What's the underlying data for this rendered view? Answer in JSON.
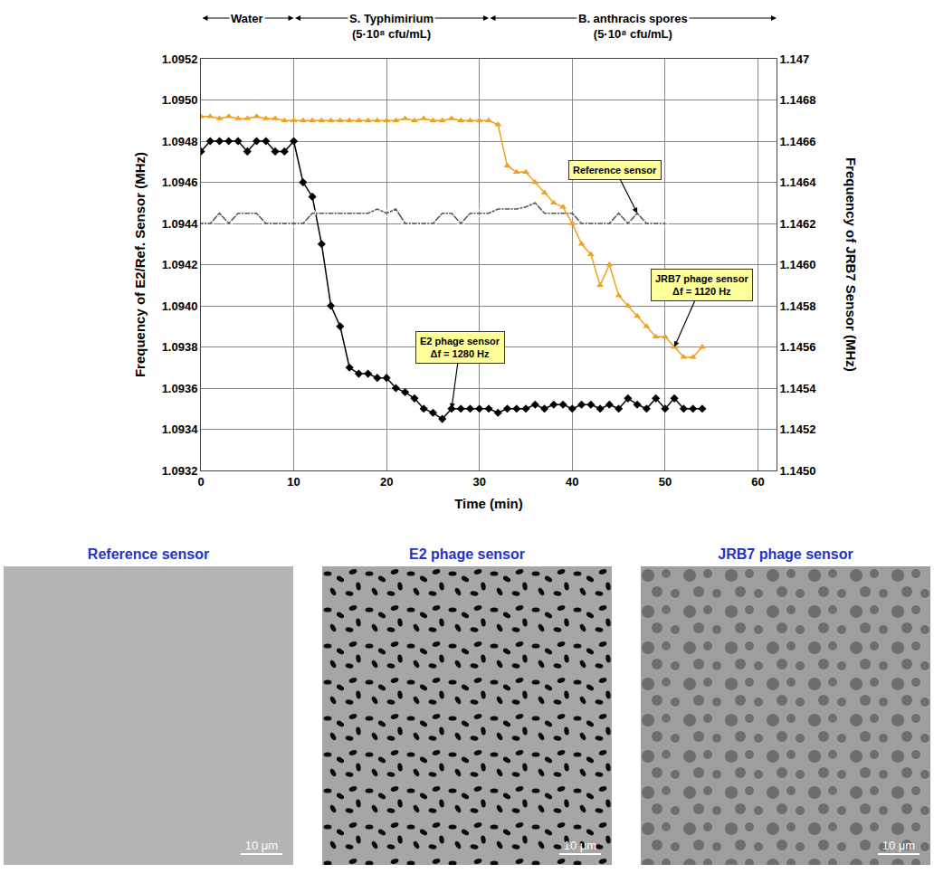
{
  "chart_data": {
    "type": "line",
    "xlabel": "Time (min)",
    "ylabel": "Frequency of E2/Ref. Sensor (MHz)",
    "y2label": "Frequency of JRB7 Sensor (MHz)",
    "xlim": [
      0,
      62
    ],
    "xticks": [
      0,
      10,
      20,
      30,
      40,
      50,
      60
    ],
    "ylim": [
      1.0932,
      1.0952
    ],
    "yticks": [
      1.0932,
      1.0934,
      1.0936,
      1.0938,
      {
        "value": 1.094,
        "label": "1.0940"
      },
      1.0942,
      1.0944,
      1.0946,
      1.0948,
      {
        "value": 1.095,
        "label": "1.0950"
      },
      1.0952
    ],
    "y2lim": [
      1.145,
      1.147
    ],
    "y2ticks": [
      {
        "value": 1.145,
        "label": "1.1450"
      },
      1.1452,
      1.1454,
      1.1456,
      1.1458,
      {
        "value": 1.146,
        "label": "1.1460"
      },
      1.1462,
      1.1464,
      1.1466,
      1.1468,
      1.147
    ],
    "grid": true,
    "phases": [
      {
        "label": "Water",
        "start": 0,
        "end": 10
      },
      {
        "label": "S. Typhimirium",
        "note": "(5·10⁸ cfu/mL)",
        "start": 10,
        "end": 31
      },
      {
        "label": "B. anthracis spores",
        "note": "(5·10⁸ cfu/mL)",
        "start": 31,
        "end": 62
      }
    ],
    "series": [
      {
        "name": "E2 phage sensor",
        "note": "Δf = 1280 Hz",
        "color": "#000000",
        "marker": "diamond",
        "line_style": "solid",
        "axis": "y",
        "x": [
          0,
          1,
          2,
          3,
          4,
          5,
          6,
          7,
          8,
          9,
          10,
          11,
          12,
          13,
          14,
          15,
          16,
          17,
          18,
          19,
          20,
          21,
          22,
          23,
          24,
          25,
          26,
          27,
          28,
          29,
          30,
          31,
          32,
          33,
          34,
          35,
          36,
          37,
          38,
          39,
          40,
          41,
          42,
          43,
          44,
          45,
          46,
          47,
          48,
          49,
          50,
          51,
          52,
          53,
          54
        ],
        "values": [
          1.09475,
          1.0948,
          1.0948,
          1.0948,
          1.0948,
          1.09475,
          1.0948,
          1.0948,
          1.09475,
          1.09475,
          1.0948,
          1.0946,
          1.09453,
          1.0943,
          1.094,
          1.0939,
          1.0937,
          1.09367,
          1.09367,
          1.09365,
          1.09365,
          1.0936,
          1.09358,
          1.09355,
          1.0935,
          1.09348,
          1.09345,
          1.0935,
          1.0935,
          1.0935,
          1.0935,
          1.0935,
          1.09348,
          1.0935,
          1.0935,
          1.0935,
          1.09352,
          1.0935,
          1.09352,
          1.09352,
          1.0935,
          1.09352,
          1.09352,
          1.0935,
          1.09352,
          1.0935,
          1.09355,
          1.09352,
          1.0935,
          1.09355,
          1.0935,
          1.09355,
          1.0935,
          1.0935,
          1.0935
        ]
      },
      {
        "name": "Reference sensor",
        "color": "#555555",
        "marker": "circle-open",
        "line_style": "solid",
        "axis": "y",
        "x": [
          0,
          1,
          2,
          3,
          4,
          5,
          6,
          7,
          8,
          9,
          10,
          11,
          12,
          13,
          14,
          15,
          16,
          17,
          18,
          19,
          20,
          21,
          22,
          23,
          24,
          25,
          26,
          27,
          28,
          29,
          30,
          31,
          32,
          33,
          34,
          35,
          36,
          37,
          38,
          39,
          40,
          41,
          42,
          43,
          44,
          45,
          46,
          47,
          48,
          49,
          50
        ],
        "values": [
          1.0944,
          1.0944,
          1.09445,
          1.0944,
          1.09445,
          1.09445,
          1.09445,
          1.0944,
          1.0944,
          1.0944,
          1.0944,
          1.0944,
          1.09445,
          1.09445,
          1.09445,
          1.09445,
          1.09445,
          1.09445,
          1.09445,
          1.09447,
          1.09445,
          1.09447,
          1.0944,
          1.0944,
          1.0944,
          1.0944,
          1.09445,
          1.09445,
          1.0944,
          1.09445,
          1.09445,
          1.09445,
          1.09447,
          1.09447,
          1.09447,
          1.09448,
          1.0945,
          1.09445,
          1.09445,
          1.09445,
          1.09445,
          1.0944,
          1.0944,
          1.0944,
          1.0944,
          1.09445,
          1.0944,
          1.09445,
          1.0944,
          1.0944,
          1.0944
        ]
      },
      {
        "name": "JRB7 phage sensor",
        "note": "Δf = 1120 Hz",
        "color": "#f0a020",
        "marker": "triangle-up",
        "line_style": "solid",
        "axis": "y2",
        "x": [
          0,
          1,
          2,
          3,
          4,
          5,
          6,
          7,
          8,
          9,
          10,
          11,
          12,
          13,
          14,
          15,
          16,
          17,
          18,
          19,
          20,
          21,
          22,
          23,
          24,
          25,
          26,
          27,
          28,
          29,
          30,
          31,
          32,
          33,
          34,
          35,
          36,
          37,
          38,
          39,
          40,
          41,
          42,
          43,
          44,
          45,
          46,
          47,
          48,
          49,
          50,
          51,
          52,
          53,
          54
        ],
        "values": [
          1.14672,
          1.14672,
          1.14671,
          1.14672,
          1.14671,
          1.14671,
          1.14672,
          1.14671,
          1.14671,
          1.1467,
          1.1467,
          1.1467,
          1.1467,
          1.1467,
          1.1467,
          1.1467,
          1.1467,
          1.1467,
          1.1467,
          1.1467,
          1.1467,
          1.1467,
          1.14671,
          1.1467,
          1.14671,
          1.1467,
          1.1467,
          1.14671,
          1.1467,
          1.1467,
          1.1467,
          1.1467,
          1.14668,
          1.14648,
          1.14645,
          1.14645,
          1.1464,
          1.14635,
          1.1463,
          1.14628,
          1.1462,
          1.1461,
          1.14605,
          1.1459,
          1.146,
          1.14585,
          1.1458,
          1.14575,
          1.1457,
          1.14565,
          1.14565,
          1.1456,
          1.14555,
          1.14555,
          1.1456
        ]
      }
    ]
  },
  "images": [
    {
      "title": "Reference sensor",
      "scale_bar": "10 μm"
    },
    {
      "title": "E2 phage sensor",
      "scale_bar": "10 μm"
    },
    {
      "title": "JRB7 phage sensor",
      "scale_bar": "10 μm"
    }
  ]
}
